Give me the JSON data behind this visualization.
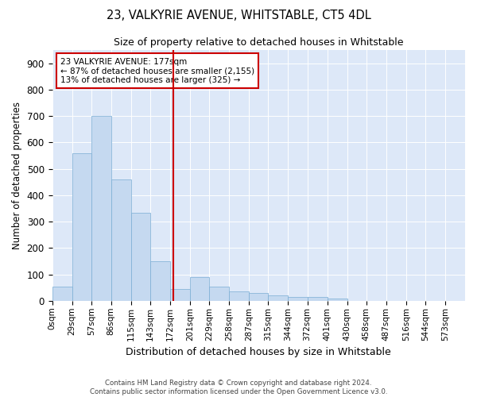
{
  "title": "23, VALKYRIE AVENUE, WHITSTABLE, CT5 4DL",
  "subtitle": "Size of property relative to detached houses in Whitstable",
  "xlabel": "Distribution of detached houses by size in Whitstable",
  "ylabel": "Number of detached properties",
  "annotation_line1": "23 VALKYRIE AVENUE: 177sqm",
  "annotation_line2": "← 87% of detached houses are smaller (2,155)",
  "annotation_line3": "13% of detached houses are larger (325) →",
  "bin_labels": [
    "0sqm",
    "29sqm",
    "57sqm",
    "86sqm",
    "115sqm",
    "143sqm",
    "172sqm",
    "201sqm",
    "229sqm",
    "258sqm",
    "287sqm",
    "315sqm",
    "344sqm",
    "372sqm",
    "401sqm",
    "430sqm",
    "458sqm",
    "487sqm",
    "516sqm",
    "544sqm",
    "573sqm"
  ],
  "bar_values": [
    55,
    560,
    700,
    460,
    335,
    150,
    45,
    90,
    55,
    35,
    30,
    20,
    15,
    15,
    10,
    0,
    0,
    0,
    1,
    0,
    0
  ],
  "bar_color": "#c5d9f0",
  "bar_edge_color": "#7aadd4",
  "vline_x": 177,
  "vline_color": "#cc0000",
  "annotation_box_edgecolor": "#cc0000",
  "background_color": "#dde8f8",
  "grid_color": "#ffffff",
  "ylim": [
    0,
    950
  ],
  "yticks": [
    0,
    100,
    200,
    300,
    400,
    500,
    600,
    700,
    800,
    900
  ],
  "footer_line1": "Contains HM Land Registry data © Crown copyright and database right 2024.",
  "footer_line2": "Contains public sector information licensed under the Open Government Licence v3.0."
}
